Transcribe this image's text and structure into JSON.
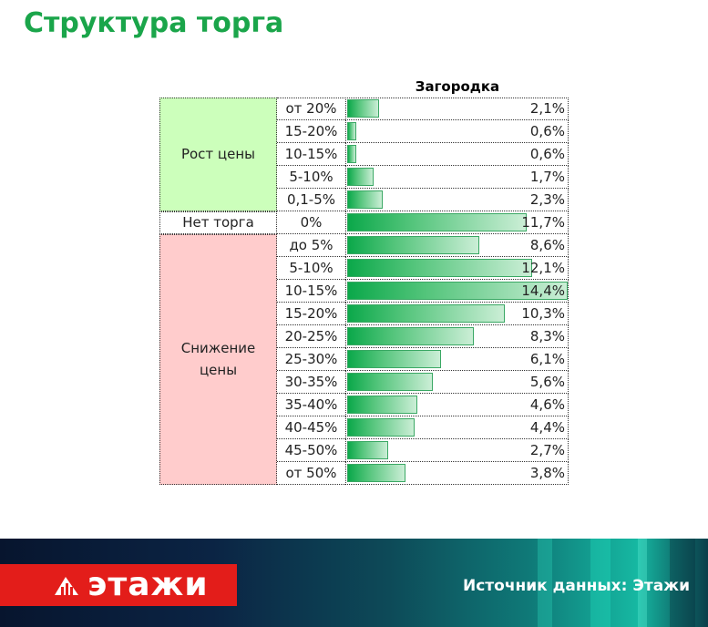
{
  "header": {
    "title": "Структура торга"
  },
  "chart_data": {
    "type": "bar",
    "series": [
      {
        "name": "Загородка"
      }
    ],
    "groups": [
      {
        "label": "Рост цены",
        "rows": [
          0,
          4
        ]
      },
      {
        "label": "Нет торга",
        "rows": [
          5,
          5
        ]
      },
      {
        "label": "Снижение цены",
        "rows": [
          6,
          16
        ]
      }
    ],
    "categories": [
      "от 20%",
      "15-20%",
      "10-15%",
      "5-10%",
      "0,1-5%",
      "0%",
      "до 5%",
      "5-10%",
      "10-15%",
      "15-20%",
      "20-25%",
      "25-30%",
      "30-35%",
      "35-40%",
      "40-45%",
      "45-50%",
      "от 50%"
    ],
    "values": [
      2.1,
      0.6,
      0.6,
      1.7,
      2.3,
      11.7,
      8.6,
      12.1,
      14.4,
      10.3,
      8.3,
      6.1,
      5.6,
      4.6,
      4.4,
      2.7,
      3.8
    ],
    "value_labels": [
      "2,1%",
      "0,6%",
      "0,6%",
      "1,7%",
      "2,3%",
      "11,7%",
      "8,6%",
      "12,1%",
      "14,4%",
      "10,3%",
      "8,3%",
      "6,1%",
      "5,6%",
      "4,6%",
      "4,4%",
      "2,7%",
      "3,8%"
    ],
    "xlim": [
      0,
      14.4
    ],
    "colors": {
      "bar": "#0ba84a",
      "growth_group": "#ccffbb",
      "none_group": "#ffffff",
      "drop_group": "#ffcccc"
    }
  },
  "footer": {
    "logo_text": "этажи",
    "source": "Источник данных: Этажи"
  }
}
